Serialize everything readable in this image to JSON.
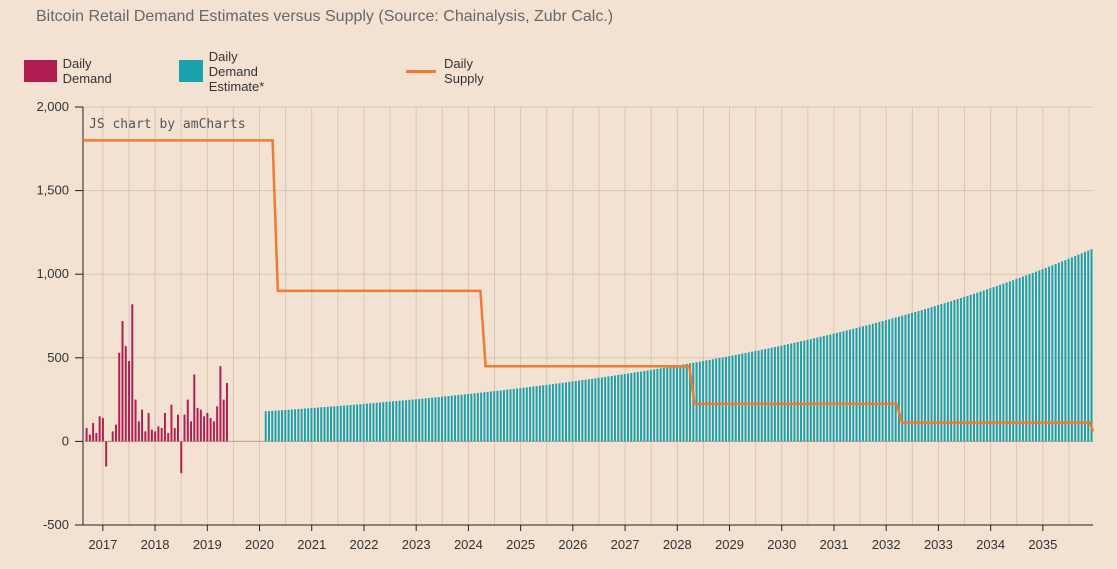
{
  "title": "Bitcoin Retail Demand Estimates versus Supply (Source: Chainalysis, Zubr Calc.)",
  "credit": "JS chart by amCharts",
  "legend": [
    {
      "label": "Daily Demand",
      "color": "#b01d52",
      "kind": "bar"
    },
    {
      "label": "Daily Demand Estimate*",
      "color": "#1aa1ae",
      "kind": "bar"
    },
    {
      "label": "Daily Supply",
      "color": "#ef7a31",
      "kind": "line"
    }
  ],
  "chart_data": {
    "type": "bar",
    "title": "Bitcoin Retail Demand Estimates versus Supply (Source: Chainalysis, Zubr Calc.)",
    "ylim": [
      -500,
      2000
    ],
    "yticks": [
      2000,
      1500,
      1000,
      500,
      0,
      -500
    ],
    "ytick_labels": [
      "2,000",
      "1,500",
      "1,000",
      "500",
      "0",
      "-500"
    ],
    "xlim": [
      2016.62,
      2035.96
    ],
    "xticks": [
      2017,
      2018,
      2019,
      2020,
      2021,
      2022,
      2023,
      2024,
      2025,
      2026,
      2027,
      2028,
      2029,
      2030,
      2031,
      2032,
      2033,
      2034,
      2035
    ],
    "xtick_labels": [
      "2017",
      "2018",
      "2019",
      "2020",
      "2021",
      "2022",
      "2023",
      "2024",
      "2025",
      "2026",
      "2027",
      "2028",
      "2029",
      "2030",
      "2031",
      "2032",
      "2033",
      "2034",
      "2035"
    ],
    "grid": true,
    "series": [
      {
        "name": "Daily Demand",
        "type": "bar",
        "color": "#b01d52",
        "start_year": 2016.67,
        "step_years": 0.0625,
        "values": [
          80,
          40,
          110,
          50,
          150,
          140,
          -150,
          0,
          60,
          100,
          530,
          720,
          570,
          480,
          820,
          250,
          120,
          190,
          60,
          170,
          70,
          60,
          90,
          80,
          170,
          50,
          220,
          80,
          160,
          -190,
          160,
          250,
          120,
          400,
          200,
          190,
          150,
          170,
          140,
          120,
          210,
          450,
          250,
          350
        ]
      },
      {
        "name": "Daily Demand Estimate*",
        "type": "bar",
        "color": "#1aa1ae",
        "start_year": 2020.1,
        "end_year": 2035.96,
        "step_years": 0.0625,
        "start_value": 180,
        "end_value": 1150,
        "growth": "exponential"
      },
      {
        "name": "Daily Supply",
        "type": "line",
        "color": "#ef7a31",
        "points": [
          [
            2016.62,
            1800
          ],
          [
            2020.25,
            1800
          ],
          [
            2020.35,
            900
          ],
          [
            2024.23,
            900
          ],
          [
            2024.33,
            450
          ],
          [
            2028.23,
            450
          ],
          [
            2028.33,
            225
          ],
          [
            2032.2,
            225
          ],
          [
            2032.3,
            112.5
          ],
          [
            2035.9,
            112.5
          ],
          [
            2035.96,
            60
          ]
        ]
      }
    ]
  }
}
